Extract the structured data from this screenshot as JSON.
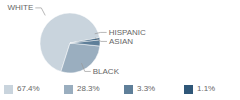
{
  "chart_data": {
    "type": "pie",
    "categories": [
      "WHITE",
      "BLACK",
      "ASIAN",
      "HISPANIC"
    ],
    "values": [
      67.4,
      28.3,
      3.3,
      1.1
    ],
    "value_labels": [
      "67.4%",
      "28.3%",
      "3.3%",
      "1.1%"
    ],
    "colors": [
      "#c9d4dd",
      "#9aaebf",
      "#5f7f99",
      "#2f5778"
    ],
    "legend": "bottom"
  }
}
